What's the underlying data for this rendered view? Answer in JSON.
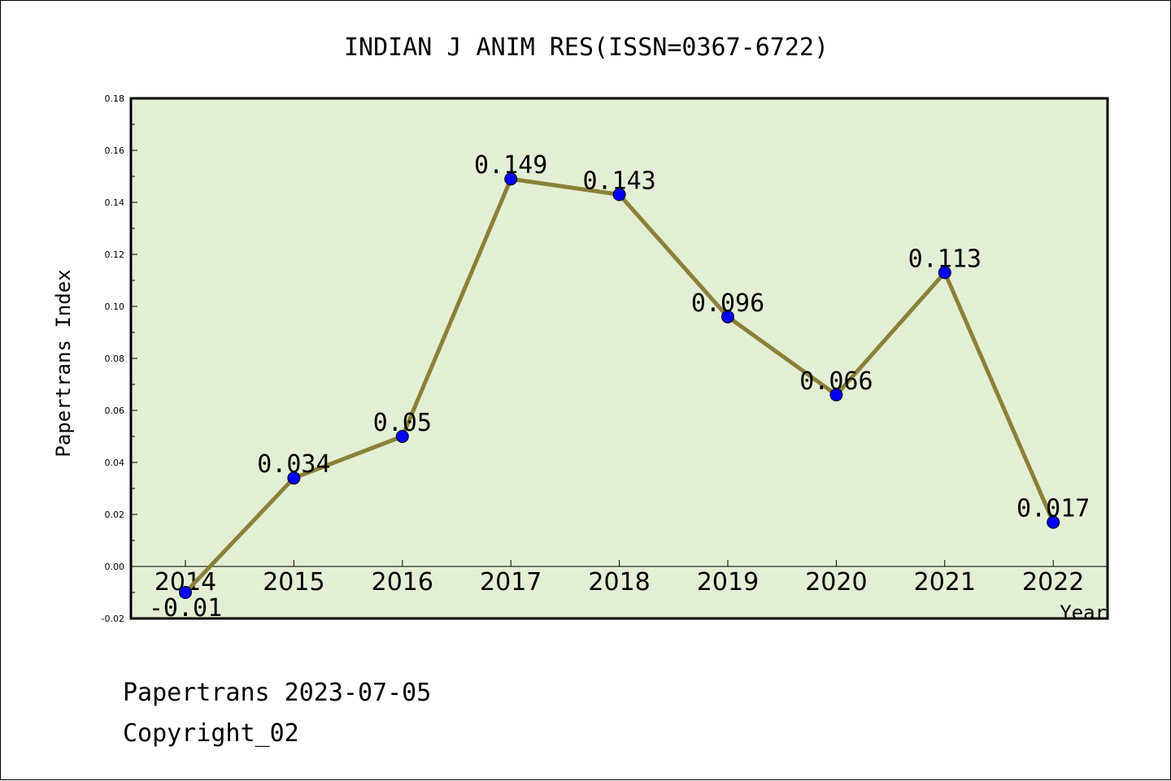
{
  "chart_data": {
    "type": "line",
    "title": "INDIAN J ANIM RES(ISSN=0367-6722)",
    "xlabel": "Year",
    "ylabel": "Papertrans Index",
    "categories": [
      "2014",
      "2015",
      "2016",
      "2017",
      "2018",
      "2019",
      "2020",
      "2021",
      "2022"
    ],
    "series": [
      {
        "values": [
          -0.01,
          0.034,
          0.05,
          0.149,
          0.143,
          0.096,
          0.066,
          0.113,
          0.017
        ],
        "labels": [
          "-0.01",
          "0.034",
          "0.05",
          "0.149",
          "0.143",
          "0.096",
          "0.066",
          "0.113",
          "0.017"
        ]
      }
    ],
    "ylim": [
      -0.02,
      0.18
    ],
    "yticks": [
      -0.02,
      0.0,
      0.02,
      0.04,
      0.06,
      0.08,
      0.1,
      0.12,
      0.14,
      0.16,
      0.18
    ],
    "ytick_labels": [
      "-0.02",
      "0.00",
      "0.02",
      "0.04",
      "0.06",
      "0.08",
      "0.10",
      "0.12",
      "0.14",
      "0.16",
      "0.18"
    ],
    "grid": false,
    "legend": "none",
    "colors": {
      "plot_background": "#e2efd5",
      "line": "#8b8038",
      "marker": "#0000ff"
    }
  },
  "footer": {
    "line1": "Papertrans 2023-07-05",
    "line2": "Copyright_02"
  }
}
